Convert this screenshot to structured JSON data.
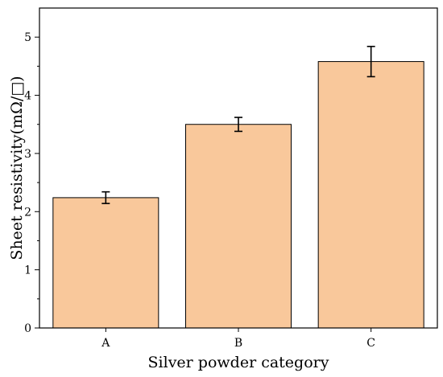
{
  "chart_data": {
    "type": "bar",
    "categories": [
      "A",
      "B",
      "C"
    ],
    "values": [
      2.24,
      3.5,
      4.58
    ],
    "error": [
      0.1,
      0.12,
      0.26
    ],
    "xlabel": "Silver powder category",
    "ylabel": "Sheet resistivity(mΩ/□)",
    "ylim": [
      0,
      5.5
    ],
    "yticks": [
      0,
      1,
      2,
      3,
      4,
      5
    ],
    "grid": false,
    "bar_color": "#f9c89b",
    "edge_color": "#000000"
  }
}
